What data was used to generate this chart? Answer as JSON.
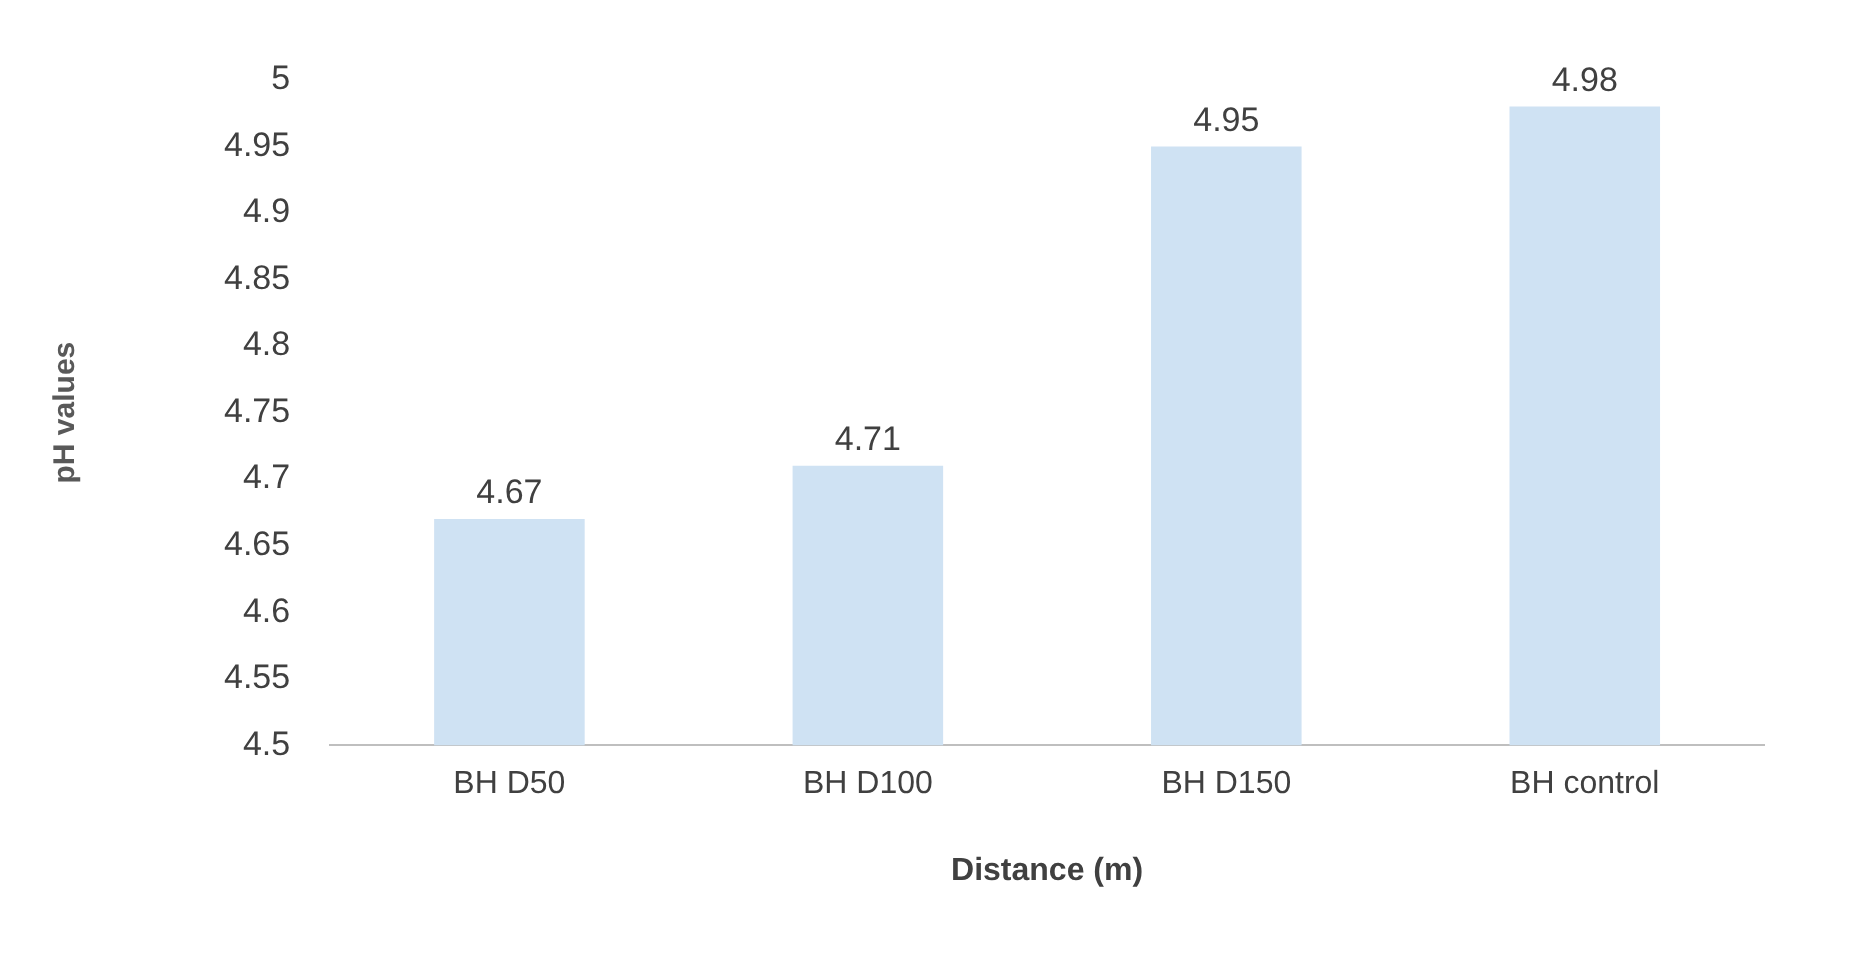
{
  "chart_data": {
    "type": "bar",
    "xlabel": "Distance (m)",
    "ylabel": "pH values",
    "categories": [
      "BH D50",
      "BH D100",
      "BH D150",
      "BH control"
    ],
    "values": [
      4.67,
      4.71,
      4.95,
      4.98
    ],
    "color": "#cfe2f3",
    "ylim": [
      4.5,
      5
    ],
    "yticks": [
      4.5,
      4.55,
      4.6,
      4.65,
      4.7,
      4.75,
      4.8,
      4.85,
      4.9,
      4.95,
      5
    ],
    "grid": false,
    "legend": false,
    "data_labels": true
  }
}
